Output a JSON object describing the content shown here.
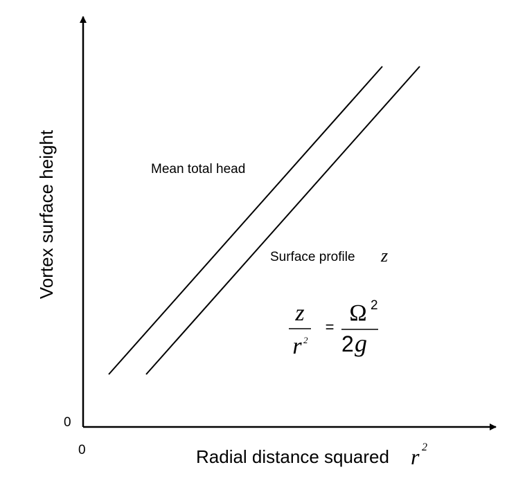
{
  "axes": {
    "y_label": "Vortex surface height",
    "x_label": "Radial distance squared",
    "x_label_symbol": "r",
    "x_label_exponent": "2",
    "y_origin": "0",
    "x_origin": "0"
  },
  "lines": [
    {
      "label": "Mean total head"
    },
    {
      "label": "Surface profile",
      "symbol": "z"
    }
  ],
  "equation": {
    "lhs_numerator": "z",
    "lhs_denominator": "r",
    "lhs_denominator_exponent": "2",
    "operator": "=",
    "rhs_numerator": "Ω",
    "rhs_numerator_exponent": "2",
    "rhs_denominator_coefficient": "2",
    "rhs_denominator_symbol": "g"
  }
}
